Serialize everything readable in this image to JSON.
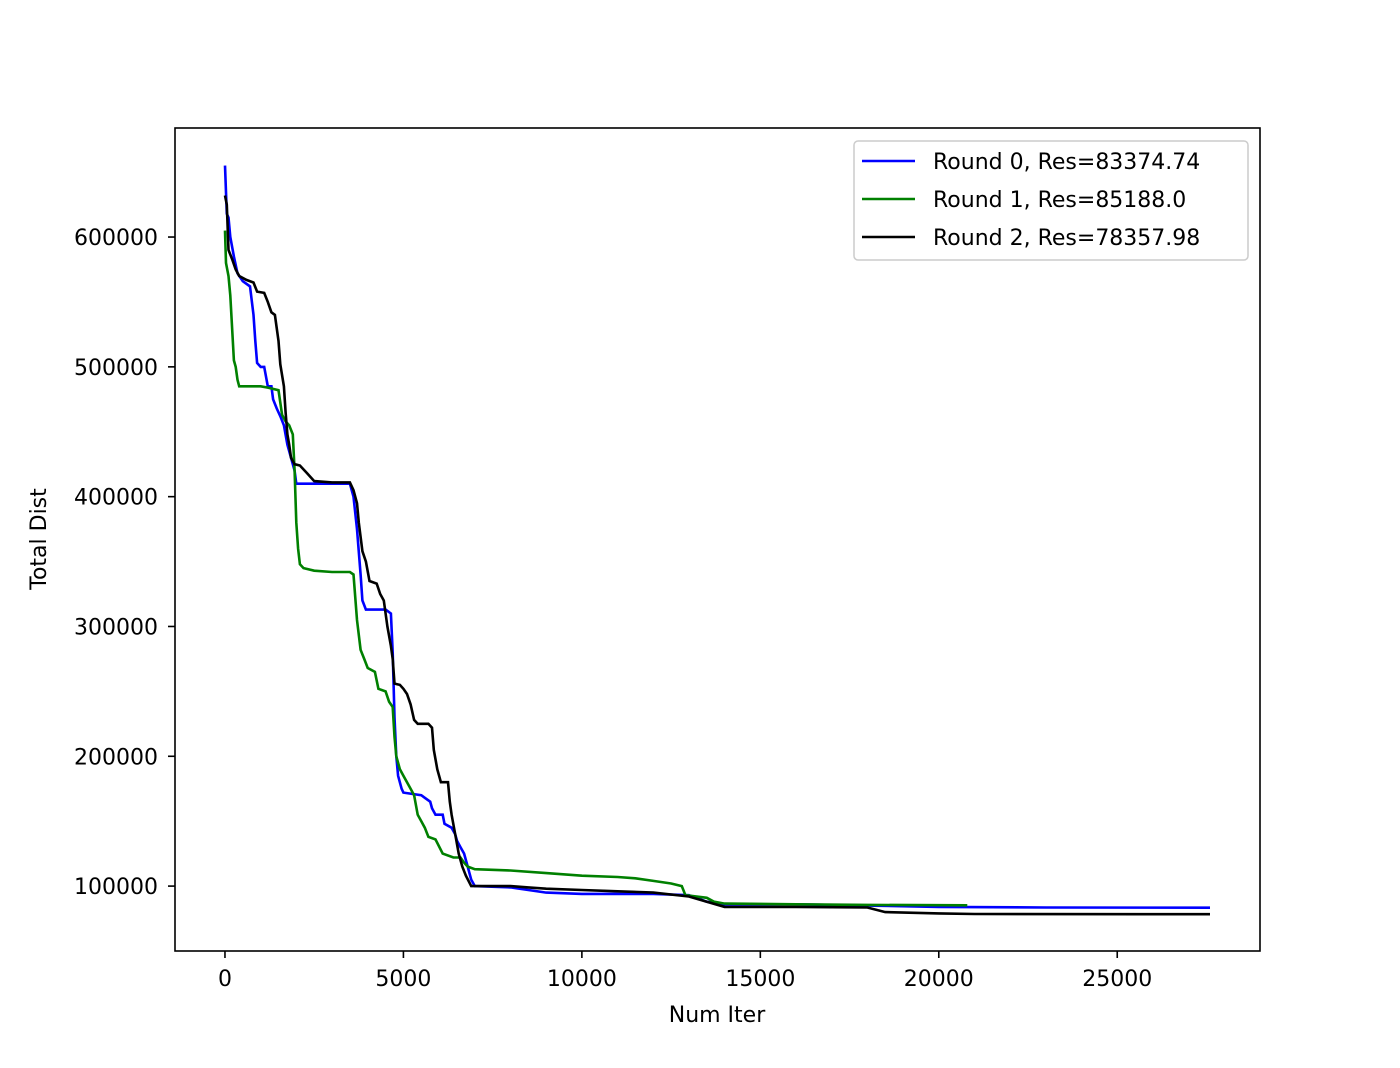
{
  "chart_data": {
    "type": "line",
    "title": "",
    "xlabel": "Num Iter",
    "ylabel": "Total Dist",
    "xlim": [
      -1400,
      29000
    ],
    "ylim": [
      50000,
      684000
    ],
    "xticks": [
      0,
      5000,
      10000,
      15000,
      20000,
      25000
    ],
    "xtick_labels": [
      "0",
      "5000",
      "10000",
      "15000",
      "20000",
      "25000"
    ],
    "yticks": [
      100000,
      200000,
      300000,
      400000,
      500000,
      600000
    ],
    "ytick_labels": [
      "100000",
      "200000",
      "300000",
      "400000",
      "500000",
      "600000"
    ],
    "grid": false,
    "legend_position": "top-right",
    "series": [
      {
        "name": "Round 0, Res=83374.74",
        "color": "#0000ff",
        "points": [
          [
            0,
            655000
          ],
          [
            50,
            618000
          ],
          [
            100,
            615000
          ],
          [
            150,
            600000
          ],
          [
            250,
            585000
          ],
          [
            350,
            572000
          ],
          [
            500,
            566000
          ],
          [
            700,
            562000
          ],
          [
            800,
            540000
          ],
          [
            850,
            520000
          ],
          [
            900,
            503000
          ],
          [
            1000,
            500000
          ],
          [
            1100,
            500000
          ],
          [
            1200,
            485000
          ],
          [
            1300,
            485000
          ],
          [
            1350,
            475000
          ],
          [
            1450,
            468000
          ],
          [
            1550,
            462000
          ],
          [
            1650,
            455000
          ],
          [
            1750,
            440000
          ],
          [
            1850,
            430000
          ],
          [
            1950,
            420000
          ],
          [
            2000,
            410000
          ],
          [
            2500,
            410000
          ],
          [
            3000,
            410000
          ],
          [
            3500,
            410000
          ],
          [
            3600,
            400000
          ],
          [
            3700,
            375000
          ],
          [
            3800,
            340000
          ],
          [
            3850,
            320000
          ],
          [
            3950,
            313000
          ],
          [
            4500,
            313000
          ],
          [
            4650,
            310000
          ],
          [
            4700,
            280000
          ],
          [
            4750,
            230000
          ],
          [
            4800,
            200000
          ],
          [
            4850,
            185000
          ],
          [
            4950,
            175000
          ],
          [
            5000,
            172000
          ],
          [
            5500,
            170000
          ],
          [
            5600,
            168000
          ],
          [
            5750,
            165000
          ],
          [
            5800,
            160000
          ],
          [
            5900,
            155000
          ],
          [
            6100,
            155000
          ],
          [
            6150,
            148000
          ],
          [
            6350,
            145000
          ],
          [
            6450,
            140000
          ],
          [
            6500,
            135000
          ],
          [
            6600,
            130000
          ],
          [
            6700,
            125000
          ],
          [
            6800,
            115000
          ],
          [
            6900,
            105000
          ],
          [
            7000,
            100000
          ],
          [
            8000,
            99000
          ],
          [
            8500,
            97000
          ],
          [
            9000,
            95000
          ],
          [
            10000,
            94000
          ],
          [
            11000,
            94000
          ],
          [
            12000,
            94000
          ],
          [
            13000,
            93000
          ],
          [
            13500,
            88000
          ],
          [
            14000,
            86000
          ],
          [
            16000,
            86000
          ],
          [
            18000,
            85000
          ],
          [
            20000,
            84000
          ],
          [
            23000,
            83500
          ],
          [
            27600,
            83374.74
          ]
        ]
      },
      {
        "name": "Round 1, Res=85188.0",
        "color": "#008000",
        "points": [
          [
            0,
            605000
          ],
          [
            30,
            580000
          ],
          [
            100,
            570000
          ],
          [
            150,
            555000
          ],
          [
            200,
            530000
          ],
          [
            250,
            505000
          ],
          [
            300,
            500000
          ],
          [
            350,
            490000
          ],
          [
            400,
            485000
          ],
          [
            1000,
            485000
          ],
          [
            1200,
            484000
          ],
          [
            1500,
            482000
          ],
          [
            1600,
            463000
          ],
          [
            1700,
            458000
          ],
          [
            1800,
            455000
          ],
          [
            1900,
            448000
          ],
          [
            1950,
            420000
          ],
          [
            2000,
            380000
          ],
          [
            2050,
            360000
          ],
          [
            2100,
            348000
          ],
          [
            2200,
            345000
          ],
          [
            2500,
            343000
          ],
          [
            3000,
            342000
          ],
          [
            3500,
            342000
          ],
          [
            3600,
            340000
          ],
          [
            3700,
            305000
          ],
          [
            3800,
            282000
          ],
          [
            3900,
            275000
          ],
          [
            4000,
            268000
          ],
          [
            4200,
            265000
          ],
          [
            4300,
            252000
          ],
          [
            4500,
            250000
          ],
          [
            4600,
            242000
          ],
          [
            4700,
            238000
          ],
          [
            4750,
            215000
          ],
          [
            4800,
            200000
          ],
          [
            4900,
            190000
          ],
          [
            5000,
            185000
          ],
          [
            5200,
            175000
          ],
          [
            5300,
            170000
          ],
          [
            5400,
            155000
          ],
          [
            5500,
            150000
          ],
          [
            5600,
            145000
          ],
          [
            5700,
            138000
          ],
          [
            5900,
            136000
          ],
          [
            6100,
            125000
          ],
          [
            6400,
            122000
          ],
          [
            6600,
            122000
          ],
          [
            6700,
            118000
          ],
          [
            6800,
            115000
          ],
          [
            7000,
            113000
          ],
          [
            8000,
            112000
          ],
          [
            9000,
            110000
          ],
          [
            10000,
            108000
          ],
          [
            11000,
            107000
          ],
          [
            11500,
            106000
          ],
          [
            12000,
            104000
          ],
          [
            12500,
            102000
          ],
          [
            12800,
            100000
          ],
          [
            12900,
            93000
          ],
          [
            13500,
            91000
          ],
          [
            13700,
            88000
          ],
          [
            14000,
            86500
          ],
          [
            16000,
            86000
          ],
          [
            18000,
            85500
          ],
          [
            20800,
            85188
          ]
        ]
      },
      {
        "name": "Round 2, Res=78357.98",
        "color": "#000000",
        "points": [
          [
            0,
            632000
          ],
          [
            50,
            625000
          ],
          [
            100,
            590000
          ],
          [
            200,
            583000
          ],
          [
            300,
            575000
          ],
          [
            400,
            570000
          ],
          [
            600,
            567000
          ],
          [
            800,
            565000
          ],
          [
            900,
            558000
          ],
          [
            1100,
            557000
          ],
          [
            1200,
            550000
          ],
          [
            1300,
            542000
          ],
          [
            1400,
            540000
          ],
          [
            1450,
            530000
          ],
          [
            1500,
            520000
          ],
          [
            1550,
            502000
          ],
          [
            1650,
            485000
          ],
          [
            1700,
            465000
          ],
          [
            1750,
            448000
          ],
          [
            1800,
            440000
          ],
          [
            1850,
            430000
          ],
          [
            1950,
            425000
          ],
          [
            2100,
            424000
          ],
          [
            2300,
            418000
          ],
          [
            2500,
            412000
          ],
          [
            3000,
            411000
          ],
          [
            3500,
            411000
          ],
          [
            3600,
            405000
          ],
          [
            3700,
            395000
          ],
          [
            3750,
            380000
          ],
          [
            3850,
            358000
          ],
          [
            3950,
            350000
          ],
          [
            4050,
            335000
          ],
          [
            4250,
            333000
          ],
          [
            4350,
            325000
          ],
          [
            4450,
            320000
          ],
          [
            4550,
            300000
          ],
          [
            4650,
            285000
          ],
          [
            4700,
            275000
          ],
          [
            4750,
            256000
          ],
          [
            4900,
            255000
          ],
          [
            5000,
            252000
          ],
          [
            5100,
            248000
          ],
          [
            5200,
            240000
          ],
          [
            5300,
            228000
          ],
          [
            5400,
            225000
          ],
          [
            5700,
            225000
          ],
          [
            5800,
            222000
          ],
          [
            5850,
            205000
          ],
          [
            5950,
            190000
          ],
          [
            6050,
            180000
          ],
          [
            6250,
            180000
          ],
          [
            6300,
            165000
          ],
          [
            6350,
            155000
          ],
          [
            6450,
            140000
          ],
          [
            6550,
            125000
          ],
          [
            6650,
            115000
          ],
          [
            6750,
            108000
          ],
          [
            6900,
            100000
          ],
          [
            8000,
            100000
          ],
          [
            8500,
            99000
          ],
          [
            9000,
            98000
          ],
          [
            10000,
            97000
          ],
          [
            11000,
            96000
          ],
          [
            12000,
            95000
          ],
          [
            13000,
            92000
          ],
          [
            13500,
            88000
          ],
          [
            14000,
            84000
          ],
          [
            16000,
            84000
          ],
          [
            18000,
            83500
          ],
          [
            18500,
            80000
          ],
          [
            20000,
            79000
          ],
          [
            21000,
            78500
          ],
          [
            27600,
            78357.98
          ]
        ]
      }
    ]
  }
}
